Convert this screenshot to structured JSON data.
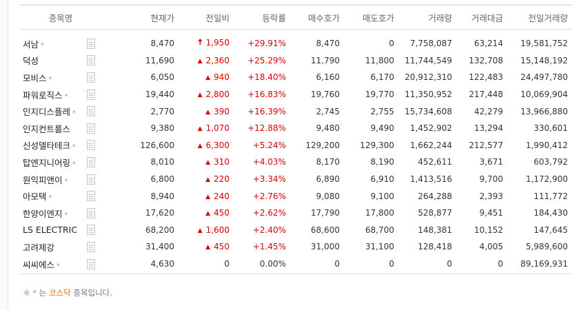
{
  "table": {
    "headers": {
      "name": "종목명",
      "price": "현재가",
      "change": "전일비",
      "rate": "등락률",
      "bid": "매수호가",
      "ask": "매도호가",
      "volume": "거래량",
      "amount": "거래대금",
      "prev_volume": "전일거래량"
    },
    "rows": [
      {
        "name": "서남",
        "star": "*",
        "price": "8,470",
        "dir": "limit",
        "change": "1,950",
        "rate": "+29.91%",
        "bid": "8,470",
        "ask": "0",
        "volume": "7,758,087",
        "amount": "63,214",
        "prev_volume": "19,581,752"
      },
      {
        "name": "덕성",
        "star": "",
        "price": "11,690",
        "dir": "up",
        "change": "2,360",
        "rate": "+25.29%",
        "bid": "11,790",
        "ask": "11,800",
        "volume": "11,744,549",
        "amount": "132,708",
        "prev_volume": "15,148,192"
      },
      {
        "name": "모비스",
        "star": "*",
        "price": "6,050",
        "dir": "up",
        "change": "940",
        "rate": "+18.40%",
        "bid": "6,160",
        "ask": "6,170",
        "volume": "20,912,310",
        "amount": "122,483",
        "prev_volume": "24,497,780"
      },
      {
        "name": "파워로직스",
        "star": "*",
        "price": "19,440",
        "dir": "up",
        "change": "2,800",
        "rate": "+16.83%",
        "bid": "19,760",
        "ask": "19,770",
        "volume": "11,350,952",
        "amount": "217,448",
        "prev_volume": "10,069,904"
      },
      {
        "name": "인지디스플레",
        "star": "*",
        "price": "2,770",
        "dir": "up",
        "change": "390",
        "rate": "+16.39%",
        "bid": "2,745",
        "ask": "2,755",
        "volume": "15,734,608",
        "amount": "42,279",
        "prev_volume": "13,966,880"
      },
      {
        "name": "인지컨트롤스",
        "star": "",
        "price": "9,380",
        "dir": "up",
        "change": "1,070",
        "rate": "+12.88%",
        "bid": "9,480",
        "ask": "9,490",
        "volume": "1,452,902",
        "amount": "13,294",
        "prev_volume": "330,601"
      },
      {
        "name": "신성델타테크",
        "star": "*",
        "price": "126,600",
        "dir": "up",
        "change": "6,300",
        "rate": "+5.24%",
        "bid": "129,200",
        "ask": "129,300",
        "volume": "1,662,244",
        "amount": "212,577",
        "prev_volume": "1,990,412"
      },
      {
        "name": "탑엔지니어링",
        "star": "*",
        "price": "8,010",
        "dir": "up",
        "change": "310",
        "rate": "+4.03%",
        "bid": "8,170",
        "ask": "8,190",
        "volume": "452,611",
        "amount": "3,671",
        "prev_volume": "603,792"
      },
      {
        "name": "원익피앤이",
        "star": "*",
        "price": "6,800",
        "dir": "up",
        "change": "220",
        "rate": "+3.34%",
        "bid": "6,890",
        "ask": "6,910",
        "volume": "1,413,516",
        "amount": "9,700",
        "prev_volume": "1,172,900"
      },
      {
        "name": "아모텍",
        "star": "*",
        "price": "8,940",
        "dir": "up",
        "change": "240",
        "rate": "+2.76%",
        "bid": "9,080",
        "ask": "9,100",
        "volume": "264,288",
        "amount": "2,393",
        "prev_volume": "111,772"
      },
      {
        "name": "한양이엔지",
        "star": "*",
        "price": "17,620",
        "dir": "up",
        "change": "450",
        "rate": "+2.62%",
        "bid": "17,790",
        "ask": "17,800",
        "volume": "528,877",
        "amount": "9,451",
        "prev_volume": "184,430"
      },
      {
        "name": "LS ELECTRIC",
        "star": "",
        "price": "68,200",
        "dir": "up",
        "change": "1,600",
        "rate": "+2.40%",
        "bid": "68,600",
        "ask": "68,700",
        "volume": "148,381",
        "amount": "10,152",
        "prev_volume": "147,645"
      },
      {
        "name": "고려제강",
        "star": "",
        "price": "31,400",
        "dir": "up",
        "change": "450",
        "rate": "+1.45%",
        "bid": "31,000",
        "ask": "31,100",
        "volume": "128,418",
        "amount": "4,005",
        "prev_volume": "5,989,600"
      },
      {
        "name": "씨씨에스",
        "star": "*",
        "price": "4,630",
        "dir": "flat",
        "change": "0",
        "rate": "0.00%",
        "bid": "0",
        "ask": "0",
        "volume": "0",
        "amount": "0",
        "prev_volume": "89,169,931"
      }
    ]
  },
  "note": {
    "mark": "※",
    "star": "*",
    "prefix": "는",
    "market": "코스닥",
    "suffix": "종목입니다."
  },
  "colors": {
    "up": "#d60000",
    "kosdaq": "#e86a00"
  },
  "icons": {
    "limit_up": "limit-up-arrow-icon",
    "up": "triangle-up-icon",
    "doc": "document-icon"
  }
}
